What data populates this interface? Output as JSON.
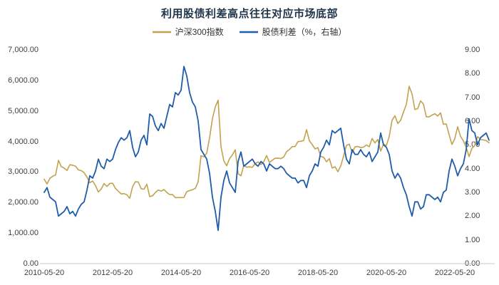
{
  "title": "利用股债利差高点往往对应市场底部",
  "chart_data": {
    "type": "line",
    "title": "利用股债利差高点往往对应市场底部",
    "x_start": "2010-05",
    "x_end": "2023-05",
    "x_frequency": "monthly",
    "x_tick_labels": [
      "2010-05-20",
      "2012-05-20",
      "2014-05-20",
      "2016-05-20",
      "2018-05-20",
      "2020-05-20",
      "2022-05-20"
    ],
    "left_axis": {
      "min": 0,
      "max": 7000,
      "tick_labels": [
        "7,000.00",
        "6,000.00",
        "5,000.00",
        "4,000.00",
        "3,000.00",
        "2,000.00",
        "1,000.00",
        "0.00"
      ]
    },
    "right_axis": {
      "min": 0,
      "max": 9,
      "tick_labels": [
        "9.00",
        "8.00",
        "7.00",
        "6.00",
        "5.00",
        "4.00",
        "3.00",
        "2.00",
        "1.00",
        "0.00"
      ]
    },
    "grid": "off",
    "legend_position": "top-center",
    "series": [
      {
        "name": "沪深300指数",
        "axis": "left",
        "color": "#C3A24F",
        "values": [
          2768,
          2610,
          2796,
          2862,
          2905,
          3380,
          3176,
          3128,
          3049,
          3238,
          3223,
          3193,
          3070,
          3044,
          2980,
          2830,
          2651,
          2704,
          2556,
          2346,
          2442,
          2623,
          2528,
          2627,
          2632,
          2461,
          2370,
          2281,
          2293,
          2255,
          2139,
          2523,
          2685,
          2669,
          2455,
          2436,
          2601,
          2195,
          2222,
          2330,
          2412,
          2373,
          2427,
          2331,
          2261,
          2264,
          2160,
          2166,
          2163,
          2166,
          2356,
          2392,
          2420,
          2463,
          2683,
          3534,
          3500,
          3617,
          4124,
          4748,
          5131,
          5353,
          3830,
          3366,
          3203,
          3438,
          3561,
          3731,
          2946,
          2877,
          3218,
          3156,
          3168,
          3154,
          3278,
          3331,
          3243,
          3338,
          3538,
          3310,
          3388,
          3452,
          3456,
          3440,
          3492,
          3666,
          3737,
          3831,
          3837,
          3998,
          4006,
          4031,
          4389,
          4023,
          3899,
          3757,
          3802,
          3510,
          3481,
          3334,
          3439,
          3129,
          3173,
          3011,
          3202,
          3523,
          3872,
          3913,
          3630,
          3825,
          3835,
          3800,
          3815,
          3886,
          3828,
          4097,
          3956,
          4070,
          3686,
          3913,
          3867,
          4163,
          4695,
          4844,
          4587,
          4695,
          4960,
          5211,
          5808,
          5553,
          5048,
          5077,
          5331,
          5224,
          4811,
          4805,
          4866,
          4909,
          4832,
          4940,
          4563,
          4574,
          4223,
          3902,
          4092,
          4485,
          4170,
          4023,
          3805,
          3508,
          3775,
          3872,
          4157,
          4069,
          4050,
          4029,
          3960
        ]
      },
      {
        "name": "股债利差（%，右轴）",
        "axis": "right",
        "color": "#1F5CA9",
        "values": [
          3.0,
          3.2,
          2.8,
          2.7,
          2.6,
          2.0,
          2.1,
          2.2,
          2.4,
          2.1,
          2.2,
          2.0,
          2.3,
          2.5,
          2.6,
          3.1,
          3.7,
          3.6,
          3.9,
          4.4,
          4.1,
          4.0,
          4.4,
          4.3,
          4.4,
          4.8,
          5.1,
          5.3,
          5.2,
          5.3,
          5.6,
          4.9,
          4.5,
          4.7,
          5.2,
          5.4,
          5.0,
          6.3,
          6.2,
          5.8,
          5.6,
          5.9,
          5.7,
          6.2,
          6.7,
          6.6,
          7.2,
          7.1,
          7.3,
          8.3,
          7.9,
          7.2,
          6.8,
          6.6,
          6.0,
          4.8,
          4.6,
          4.4,
          3.8,
          2.8,
          2.2,
          1.4,
          2.8,
          3.5,
          3.9,
          3.4,
          3.2,
          3.0,
          4.3,
          4.7,
          4.1,
          4.2,
          4.3,
          4.4,
          4.2,
          4.1,
          4.3,
          4.2,
          3.9,
          4.2,
          4.1,
          4.0,
          4.0,
          4.1,
          4.0,
          3.8,
          3.7,
          3.6,
          3.6,
          3.4,
          3.5,
          3.5,
          3.2,
          3.7,
          3.9,
          4.2,
          4.1,
          4.7,
          4.9,
          5.2,
          5.0,
          5.6,
          5.5,
          5.6,
          5.7,
          5.0,
          4.4,
          4.2,
          4.8,
          4.6,
          4.6,
          4.8,
          4.6,
          4.5,
          4.7,
          4.3,
          4.5,
          4.7,
          5.5,
          5.0,
          4.9,
          4.6,
          3.9,
          3.6,
          3.8,
          3.6,
          3.2,
          2.9,
          2.4,
          2.0,
          2.6,
          2.6,
          2.3,
          2.4,
          2.9,
          2.9,
          2.8,
          2.7,
          2.8,
          2.6,
          3.0,
          3.1,
          3.9,
          4.4,
          4.1,
          3.7,
          4.0,
          4.2,
          4.8,
          6.1,
          5.6,
          5.5,
          5.0,
          5.3,
          5.4,
          5.5,
          5.2
        ]
      }
    ]
  }
}
